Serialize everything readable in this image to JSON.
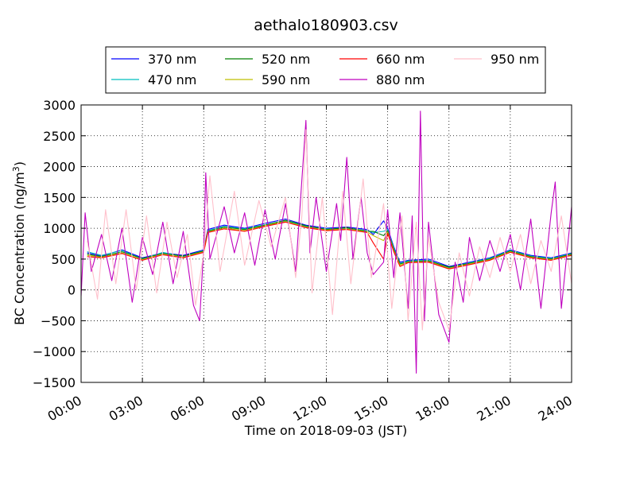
{
  "chart_data": {
    "type": "line",
    "title": "aethalo180903.csv",
    "xlabel": "Time on 2018-09-03 (JST)",
    "ylabel": "BC Concentration (ng/m³)",
    "ylabel_base": "BC Concentration (ng/m",
    "ylabel_sup": "3",
    "ylabel_tail": ")",
    "xlim": [
      0,
      24
    ],
    "ylim": [
      -1500,
      3000
    ],
    "x_ticks": [
      "00:00",
      "03:00",
      "06:00",
      "09:00",
      "12:00",
      "15:00",
      "18:00",
      "21:00",
      "24:00"
    ],
    "y_ticks": [
      "3000",
      "2500",
      "2000",
      "1500",
      "1000",
      "500",
      "0",
      "−500",
      "−1000",
      "−1500"
    ],
    "grid": true,
    "legend_position": "top",
    "x_unit": "hour",
    "series": [
      {
        "name": "370 nm",
        "color": "#0000ff",
        "points": [
          [
            0.3,
            600
          ],
          [
            1,
            550
          ],
          [
            2,
            650
          ],
          [
            3,
            520
          ],
          [
            4,
            600
          ],
          [
            5,
            560
          ],
          [
            6,
            650
          ],
          [
            6.2,
            980
          ],
          [
            7,
            1050
          ],
          [
            8,
            1000
          ],
          [
            9,
            1080
          ],
          [
            10,
            1150
          ],
          [
            11,
            1050
          ],
          [
            12,
            1000
          ],
          [
            13,
            1020
          ],
          [
            14,
            980
          ],
          [
            14.3,
            900
          ],
          [
            14.8,
            1120
          ],
          [
            15,
            1000
          ],
          [
            15.3,
            700
          ],
          [
            15.6,
            450
          ],
          [
            16,
            480
          ],
          [
            17,
            500
          ],
          [
            18,
            380
          ],
          [
            19,
            450
          ],
          [
            20,
            520
          ],
          [
            21,
            650
          ],
          [
            22,
            560
          ],
          [
            23,
            520
          ],
          [
            24,
            600
          ]
        ]
      },
      {
        "name": "470 nm",
        "color": "#00bfbf",
        "points": [
          [
            0.3,
            620
          ],
          [
            1,
            560
          ],
          [
            2,
            640
          ],
          [
            3,
            500
          ],
          [
            4,
            610
          ],
          [
            5,
            540
          ],
          [
            6,
            640
          ],
          [
            6.2,
            960
          ],
          [
            7,
            1030
          ],
          [
            8,
            990
          ],
          [
            9,
            1060
          ],
          [
            10,
            1120
          ],
          [
            11,
            1030
          ],
          [
            12,
            990
          ],
          [
            13,
            1000
          ],
          [
            14,
            960
          ],
          [
            14.3,
            930
          ],
          [
            14.8,
            950
          ],
          [
            15,
            980
          ],
          [
            15.3,
            680
          ],
          [
            15.6,
            430
          ],
          [
            16,
            470
          ],
          [
            17,
            480
          ],
          [
            18,
            360
          ],
          [
            19,
            440
          ],
          [
            20,
            510
          ],
          [
            21,
            640
          ],
          [
            22,
            550
          ],
          [
            23,
            510
          ],
          [
            24,
            590
          ]
        ]
      },
      {
        "name": "520 nm",
        "color": "#008000",
        "points": [
          [
            0.3,
            580
          ],
          [
            1,
            540
          ],
          [
            2,
            620
          ],
          [
            3,
            510
          ],
          [
            4,
            590
          ],
          [
            5,
            550
          ],
          [
            6,
            630
          ],
          [
            6.2,
            950
          ],
          [
            7,
            1020
          ],
          [
            8,
            980
          ],
          [
            9,
            1050
          ],
          [
            10,
            1130
          ],
          [
            11,
            1040
          ],
          [
            12,
            980
          ],
          [
            13,
            1010
          ],
          [
            14,
            950
          ],
          [
            14.3,
            950
          ],
          [
            14.8,
            880
          ],
          [
            15,
            960
          ],
          [
            15.3,
            660
          ],
          [
            15.6,
            420
          ],
          [
            16,
            460
          ],
          [
            17,
            470
          ],
          [
            18,
            370
          ],
          [
            19,
            430
          ],
          [
            20,
            500
          ],
          [
            21,
            630
          ],
          [
            22,
            540
          ],
          [
            23,
            500
          ],
          [
            24,
            580
          ]
        ]
      },
      {
        "name": "590 nm",
        "color": "#bfbf00",
        "points": [
          [
            0.3,
            560
          ],
          [
            1,
            530
          ],
          [
            2,
            600
          ],
          [
            3,
            490
          ],
          [
            4,
            580
          ],
          [
            5,
            530
          ],
          [
            6,
            620
          ],
          [
            6.2,
            940
          ],
          [
            7,
            1000
          ],
          [
            8,
            960
          ],
          [
            9,
            1040
          ],
          [
            10,
            1110
          ],
          [
            11,
            1020
          ],
          [
            12,
            970
          ],
          [
            13,
            990
          ],
          [
            14,
            940
          ],
          [
            14.3,
            880
          ],
          [
            14.8,
            800
          ],
          [
            15,
            940
          ],
          [
            15.3,
            640
          ],
          [
            15.6,
            400
          ],
          [
            16,
            450
          ],
          [
            17,
            460
          ],
          [
            18,
            350
          ],
          [
            19,
            420
          ],
          [
            20,
            490
          ],
          [
            21,
            620
          ],
          [
            22,
            530
          ],
          [
            23,
            490
          ],
          [
            24,
            570
          ]
        ]
      },
      {
        "name": "660 nm",
        "color": "#ff0000",
        "points": [
          [
            0.3,
            540
          ],
          [
            1,
            520
          ],
          [
            2,
            590
          ],
          [
            3,
            480
          ],
          [
            4,
            570
          ],
          [
            5,
            520
          ],
          [
            6,
            610
          ],
          [
            6.2,
            930
          ],
          [
            7,
            990
          ],
          [
            8,
            950
          ],
          [
            9,
            1030
          ],
          [
            10,
            1100
          ],
          [
            11,
            1010
          ],
          [
            12,
            960
          ],
          [
            13,
            980
          ],
          [
            14,
            930
          ],
          [
            14.3,
            760
          ],
          [
            14.8,
            500
          ],
          [
            15,
            920
          ],
          [
            15.3,
            620
          ],
          [
            15.6,
            380
          ],
          [
            16,
            440
          ],
          [
            17,
            450
          ],
          [
            18,
            340
          ],
          [
            19,
            410
          ],
          [
            20,
            480
          ],
          [
            21,
            610
          ],
          [
            22,
            520
          ],
          [
            23,
            480
          ],
          [
            24,
            560
          ]
        ]
      },
      {
        "name": "880 nm",
        "color": "#bf00bf",
        "points": [
          [
            0,
            -100
          ],
          [
            0.2,
            1250
          ],
          [
            0.5,
            300
          ],
          [
            1,
            900
          ],
          [
            1.5,
            150
          ],
          [
            2,
            1000
          ],
          [
            2.5,
            -200
          ],
          [
            3,
            850
          ],
          [
            3.5,
            250
          ],
          [
            4,
            1100
          ],
          [
            4.5,
            100
          ],
          [
            5,
            950
          ],
          [
            5.5,
            -250
          ],
          [
            5.8,
            -500
          ],
          [
            6,
            700
          ],
          [
            6.1,
            1900
          ],
          [
            6.3,
            500
          ],
          [
            7,
            1350
          ],
          [
            7.5,
            600
          ],
          [
            8,
            1250
          ],
          [
            8.5,
            400
          ],
          [
            9,
            1300
          ],
          [
            9.5,
            500
          ],
          [
            10,
            1400
          ],
          [
            10.5,
            300
          ],
          [
            11,
            2750
          ],
          [
            11.2,
            600
          ],
          [
            11.5,
            1500
          ],
          [
            12,
            300
          ],
          [
            12.5,
            1400
          ],
          [
            12.7,
            800
          ],
          [
            13,
            2150
          ],
          [
            13.3,
            500
          ],
          [
            13.7,
            1500
          ],
          [
            14,
            600
          ],
          [
            14.3,
            250
          ],
          [
            14.8,
            450
          ],
          [
            15,
            1300
          ],
          [
            15.3,
            200
          ],
          [
            15.6,
            1250
          ],
          [
            16,
            -300
          ],
          [
            16.2,
            1200
          ],
          [
            16.4,
            -1350
          ],
          [
            16.6,
            2900
          ],
          [
            16.8,
            -500
          ],
          [
            17,
            1100
          ],
          [
            17.5,
            -400
          ],
          [
            18,
            -850
          ],
          [
            18.3,
            450
          ],
          [
            18.7,
            -200
          ],
          [
            19,
            850
          ],
          [
            19.5,
            150
          ],
          [
            20,
            800
          ],
          [
            20.5,
            300
          ],
          [
            21,
            900
          ],
          [
            21.5,
            0
          ],
          [
            22,
            1150
          ],
          [
            22.5,
            -300
          ],
          [
            23,
            1250
          ],
          [
            23.2,
            1750
          ],
          [
            23.5,
            -300
          ],
          [
            24,
            1350
          ]
        ]
      },
      {
        "name": "950 nm",
        "color": "#ffc0cb",
        "points": [
          [
            0.3,
            800
          ],
          [
            0.8,
            -150
          ],
          [
            1.2,
            1300
          ],
          [
            1.7,
            100
          ],
          [
            2.2,
            1300
          ],
          [
            2.7,
            0
          ],
          [
            3.2,
            1200
          ],
          [
            3.7,
            -50
          ],
          [
            4.2,
            1100
          ],
          [
            4.7,
            200
          ],
          [
            5.2,
            900
          ],
          [
            5.6,
            -250
          ],
          [
            6,
            600
          ],
          [
            6.3,
            1850
          ],
          [
            6.8,
            300
          ],
          [
            7.5,
            1600
          ],
          [
            8,
            400
          ],
          [
            8.7,
            1450
          ],
          [
            9.3,
            700
          ],
          [
            10,
            1500
          ],
          [
            10.5,
            200
          ],
          [
            10.8,
            1200
          ],
          [
            11,
            2600
          ],
          [
            11.3,
            -50
          ],
          [
            11.8,
            1500
          ],
          [
            12.3,
            -400
          ],
          [
            12.8,
            1600
          ],
          [
            13.2,
            100
          ],
          [
            13.8,
            1800
          ],
          [
            14.2,
            200
          ],
          [
            14.8,
            1400
          ],
          [
            15.2,
            -300
          ],
          [
            15.7,
            1200
          ],
          [
            16,
            -500
          ],
          [
            16.4,
            1100
          ],
          [
            16.7,
            -650
          ],
          [
            17,
            850
          ],
          [
            17.5,
            -200
          ],
          [
            18,
            -650
          ],
          [
            18.5,
            600
          ],
          [
            19,
            -100
          ],
          [
            19.5,
            700
          ],
          [
            20,
            200
          ],
          [
            20.5,
            850
          ],
          [
            21,
            300
          ],
          [
            21.5,
            900
          ],
          [
            22,
            100
          ],
          [
            22.5,
            800
          ],
          [
            23,
            300
          ],
          [
            23.5,
            1200
          ],
          [
            24,
            100
          ]
        ]
      }
    ]
  }
}
